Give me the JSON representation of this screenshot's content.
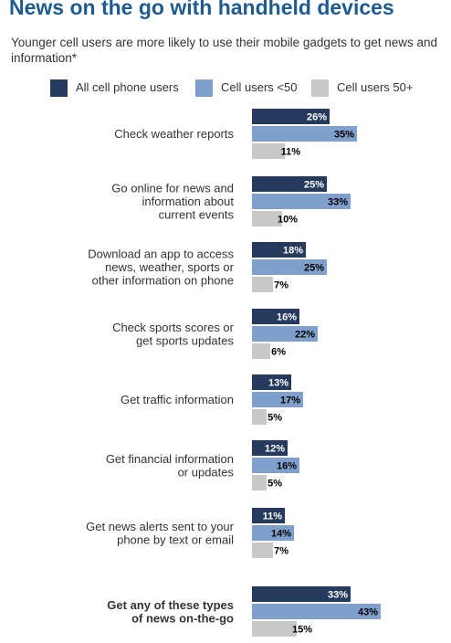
{
  "page": {
    "title": "News on the go with handheld devices",
    "subtitle": "Younger cell users are more likely to use their mobile gadgets to get news and information*"
  },
  "chart_data": {
    "type": "bar",
    "orientation": "horizontal",
    "title": "News on the go with handheld devices",
    "subtitle": "Younger cell users are more likely to use their mobile gadgets to get news and information*",
    "value_suffix": "%",
    "legend_placement": "top",
    "grid": false,
    "xlim": [
      0,
      45
    ],
    "categories": [
      "Check weather reports",
      "Go online for news and information about current events",
      "Download an app to access news, weather, sports or other information on phone",
      "Check sports scores or get sports updates",
      "Get traffic information",
      "Get financial information or updates",
      "Get news alerts sent to your phone by text or email",
      "Get any of these types of news on-the-go"
    ],
    "category_lines": [
      [
        "Check weather reports"
      ],
      [
        "Go online for news and",
        "information about",
        "current events"
      ],
      [
        "Download an app to access",
        "news, weather, sports or",
        "other information on phone"
      ],
      [
        "Check sports scores or",
        "get sports updates"
      ],
      [
        "Get traffic information"
      ],
      [
        "Get financial information",
        "or updates"
      ],
      [
        "Get news alerts sent to your",
        "phone by text or email"
      ],
      [
        "Get any of these types",
        "of news on-the-go"
      ]
    ],
    "bold_categories": [
      7
    ],
    "series": [
      {
        "name": "All cell phone users",
        "color": "#253a5c",
        "label_color": "#ffffff",
        "values": [
          26,
          25,
          18,
          16,
          13,
          12,
          11,
          33
        ]
      },
      {
        "name": "Cell users <50",
        "color": "#7f9fcc",
        "label_color": "#000000",
        "values": [
          35,
          33,
          25,
          22,
          17,
          16,
          14,
          43
        ]
      },
      {
        "name": "Cell users 50+",
        "color": "#c8c8c8",
        "label_color": "#000000",
        "values": [
          11,
          10,
          7,
          6,
          5,
          5,
          7,
          15
        ]
      }
    ]
  }
}
